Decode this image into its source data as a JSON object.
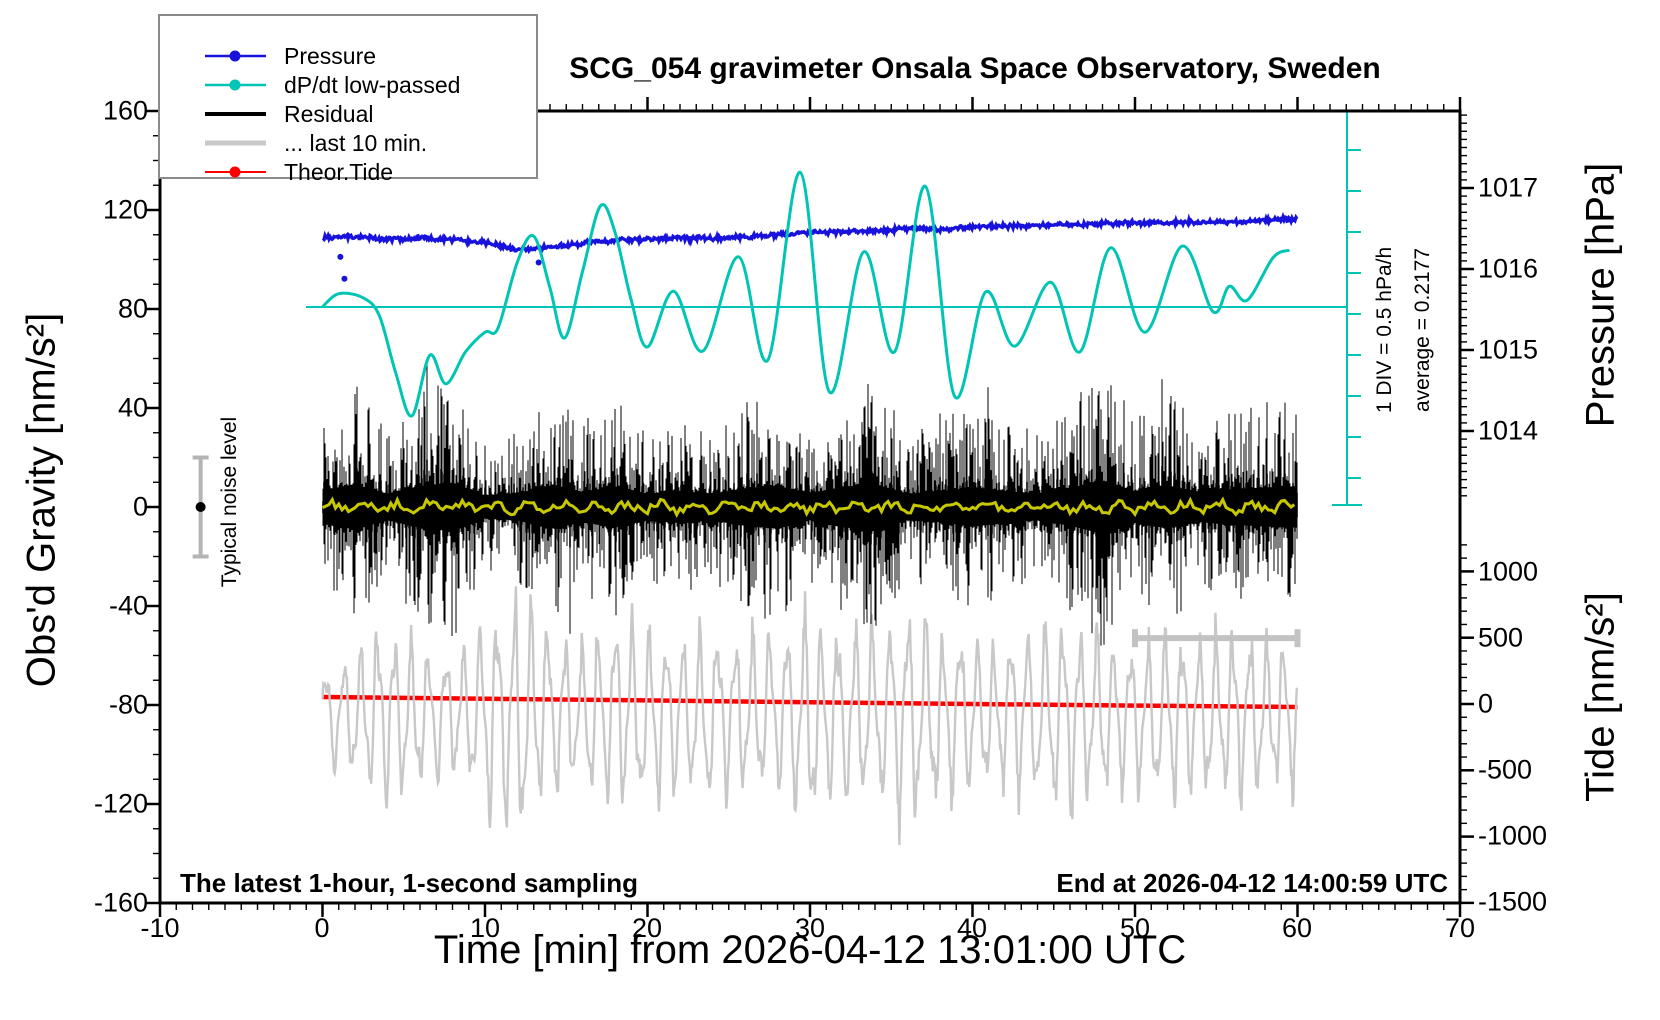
{
  "page": {
    "background": "#ffffff"
  },
  "chart_data": {
    "type": "line",
    "title": "SCG_054 gravimeter Onsala Space Observatory, Sweden",
    "xlabel": "Time [min] from 2026-04-12 13:01:00 UTC",
    "ylabel_left": "Obs'd Gravity [nm/s²]",
    "ylabel_right_top": "Pressure [hPa]",
    "ylabel_right_bottom": "Tide [nm/s²]",
    "annotations": {
      "sampling_note": "The latest 1-hour, 1-second sampling",
      "end_note": "End at 2026-04-12 14:00:59 UTC",
      "noise_label": "Typical noise level",
      "div_note": "1 DIV = 0.5 hPa/h",
      "average_note": "average = 0.2177",
      "noise_bar": {
        "t": -7.5,
        "value": 0,
        "half_range": 20
      },
      "last10_span": {
        "t_start": 50,
        "t_end": 60,
        "gravity_y": -53
      }
    },
    "axes": {
      "x": {
        "range": [
          -10,
          70
        ],
        "major_step": 10,
        "minor_step": 1,
        "tick_labels": [
          "-10",
          "0",
          "10",
          "20",
          "30",
          "40",
          "50",
          "60",
          "70"
        ]
      },
      "gravity": {
        "range": [
          -160,
          160
        ],
        "major_step": 40,
        "minor_step": 10,
        "tick_labels": [
          "160",
          "120",
          "80",
          "40",
          "0",
          "-40",
          "-80",
          "-120",
          "-160"
        ]
      },
      "pressure": {
        "unit": "hPa",
        "major_step": 1,
        "minor_step": 0.1,
        "tick_labels": [
          "1017",
          "1016",
          "1015",
          "1014"
        ],
        "tick_values": [
          1017,
          1016,
          1015,
          1014
        ]
      },
      "tide": {
        "unit": "nm/s2",
        "major_step": 500,
        "minor_step": 100,
        "tick_labels": [
          "1000",
          "500",
          "0",
          "-500",
          "-1000",
          "-1500"
        ],
        "tick_values": [
          1000,
          500,
          0,
          -500,
          -1000,
          -1500
        ]
      },
      "dpdt": {
        "unit": "hPa/h",
        "div_label": "1 DIV = 0.5 hPa/h",
        "average": 0.2177,
        "axis_color": "#00c4b4"
      }
    },
    "legend": [
      {
        "label": "Pressure",
        "color": "#1812dc",
        "symbol": "line-dot"
      },
      {
        "label": "dP/dt low-passed",
        "color": "#00c4b4",
        "symbol": "line-dot"
      },
      {
        "label": "Residual",
        "color": "#000000",
        "symbol": "line-thick"
      },
      {
        "label": "... last 10 min.",
        "color": "#c8c8c8",
        "symbol": "line-thick"
      },
      {
        "label": "Theor.Tide",
        "color": "#ff0000",
        "symbol": "line-dot"
      }
    ],
    "series": {
      "pressure": {
        "name": "Pressure",
        "color": "#1812dc",
        "unit": "hPa",
        "noise_hpa": 0.035,
        "trend": [
          [
            0,
            1016.38
          ],
          [
            2,
            1016.4
          ],
          [
            4,
            1016.37
          ],
          [
            6,
            1016.38
          ],
          [
            8,
            1016.36
          ],
          [
            10,
            1016.33
          ],
          [
            12,
            1016.24
          ],
          [
            14,
            1016.27
          ],
          [
            16,
            1016.32
          ],
          [
            18,
            1016.35
          ],
          [
            20,
            1016.37
          ],
          [
            22,
            1016.38
          ],
          [
            24,
            1016.38
          ],
          [
            26,
            1016.4
          ],
          [
            28,
            1016.42
          ],
          [
            30,
            1016.45
          ],
          [
            32,
            1016.46
          ],
          [
            34,
            1016.47
          ],
          [
            36,
            1016.5
          ],
          [
            38,
            1016.49
          ],
          [
            40,
            1016.52
          ],
          [
            42,
            1016.53
          ],
          [
            44,
            1016.54
          ],
          [
            46,
            1016.55
          ],
          [
            48,
            1016.56
          ],
          [
            50,
            1016.57
          ],
          [
            52,
            1016.57
          ],
          [
            54,
            1016.58
          ],
          [
            56,
            1016.58
          ],
          [
            58,
            1016.6
          ],
          [
            60,
            1016.62
          ]
        ],
        "outliers": [
          [
            1.1,
            1016.15
          ],
          [
            1.35,
            1015.88
          ],
          [
            13.3,
            1016.08
          ]
        ]
      },
      "dpdt_lowpassed": {
        "name": "dP/dt low-passed",
        "color": "#00c4b4",
        "unit": "hPa/h",
        "average": 0.2177,
        "div_value": 0.5,
        "points": [
          [
            0,
            0.22
          ],
          [
            1,
            0.38
          ],
          [
            2.5,
            0.33
          ],
          [
            3.5,
            0.11
          ],
          [
            4.5,
            -0.58
          ],
          [
            5.5,
            -1.11
          ],
          [
            6.6,
            -0.37
          ],
          [
            7.6,
            -0.72
          ],
          [
            8.8,
            -0.33
          ],
          [
            10,
            -0.09
          ],
          [
            10.8,
            -0.04
          ],
          [
            12,
            0.77
          ],
          [
            13,
            1.08
          ],
          [
            14,
            0.45
          ],
          [
            14.9,
            -0.16
          ],
          [
            16,
            0.65
          ],
          [
            17.1,
            1.45
          ],
          [
            18,
            1.13
          ],
          [
            19,
            0.3
          ],
          [
            20,
            -0.27
          ],
          [
            21.6,
            0.41
          ],
          [
            23.4,
            -0.32
          ],
          [
            25.6,
            0.83
          ],
          [
            27.4,
            -0.43
          ],
          [
            29.4,
            1.86
          ],
          [
            31.2,
            -0.82
          ],
          [
            33.3,
            0.89
          ],
          [
            35.2,
            -0.33
          ],
          [
            37.1,
            1.69
          ],
          [
            38.9,
            -0.87
          ],
          [
            40.8,
            0.4
          ],
          [
            42.6,
            -0.26
          ],
          [
            44.8,
            0.52
          ],
          [
            46.6,
            -0.33
          ],
          [
            48.5,
            0.94
          ],
          [
            50.6,
            -0.09
          ],
          [
            52.9,
            0.96
          ],
          [
            54.8,
            0.16
          ],
          [
            55.8,
            0.47
          ],
          [
            56.9,
            0.3
          ],
          [
            58.5,
            0.82
          ],
          [
            59.5,
            0.91
          ]
        ]
      },
      "residual": {
        "name": "Residual",
        "color": "#000000",
        "unit": "nm/s2",
        "mean": 0,
        "envelope": [
          [
            0,
            38
          ],
          [
            2,
            50
          ],
          [
            4,
            30
          ],
          [
            6,
            46
          ],
          [
            8,
            55
          ],
          [
            10,
            26
          ],
          [
            12,
            30
          ],
          [
            14,
            48
          ],
          [
            16,
            34
          ],
          [
            18,
            46
          ],
          [
            20,
            30
          ],
          [
            22,
            36
          ],
          [
            24,
            30
          ],
          [
            26,
            42
          ],
          [
            28,
            48
          ],
          [
            30,
            30
          ],
          [
            32,
            45
          ],
          [
            34,
            52
          ],
          [
            36,
            30
          ],
          [
            38,
            34
          ],
          [
            40,
            44
          ],
          [
            42,
            36
          ],
          [
            44,
            30
          ],
          [
            46,
            42
          ],
          [
            48,
            60
          ],
          [
            50,
            36
          ],
          [
            52,
            48
          ],
          [
            54,
            34
          ],
          [
            56,
            40
          ],
          [
            58,
            44
          ],
          [
            60,
            46
          ]
        ]
      },
      "residual_lowpassed": {
        "name": "Residual low-passed",
        "color": "#c8c800",
        "mean": 0,
        "amplitude": 2.5
      },
      "last10": {
        "name": "... last 10 min.",
        "color": "#c8c8c8",
        "unit": "nm/s2 (tide scale)",
        "center_tide": -85,
        "period_min": 1.05,
        "envelope": [
          [
            0,
            350
          ],
          [
            2,
            500
          ],
          [
            4,
            780
          ],
          [
            6,
            520
          ],
          [
            8,
            480
          ],
          [
            10,
            700
          ],
          [
            12,
            1000
          ],
          [
            14,
            640
          ],
          [
            16,
            560
          ],
          [
            18,
            760
          ],
          [
            20,
            680
          ],
          [
            22,
            600
          ],
          [
            24,
            700
          ],
          [
            26,
            640
          ],
          [
            28,
            580
          ],
          [
            30,
            820
          ],
          [
            32,
            700
          ],
          [
            34,
            620
          ],
          [
            36,
            900
          ],
          [
            38,
            680
          ],
          [
            40,
            600
          ],
          [
            42,
            560
          ],
          [
            44,
            700
          ],
          [
            46,
            760
          ],
          [
            48,
            640
          ],
          [
            50,
            580
          ],
          [
            52,
            660
          ],
          [
            54,
            600
          ],
          [
            56,
            680
          ],
          [
            58,
            620
          ],
          [
            60,
            560
          ]
        ]
      },
      "theor_tide": {
        "name": "Theor.Tide",
        "color": "#ff0000",
        "unit": "nm/s2",
        "points": [
          [
            0,
            53
          ],
          [
            10,
            40
          ],
          [
            20,
            27
          ],
          [
            30,
            13
          ],
          [
            40,
            0
          ],
          [
            50,
            -12
          ],
          [
            60,
            -23
          ]
        ]
      }
    },
    "seed": 1337
  }
}
